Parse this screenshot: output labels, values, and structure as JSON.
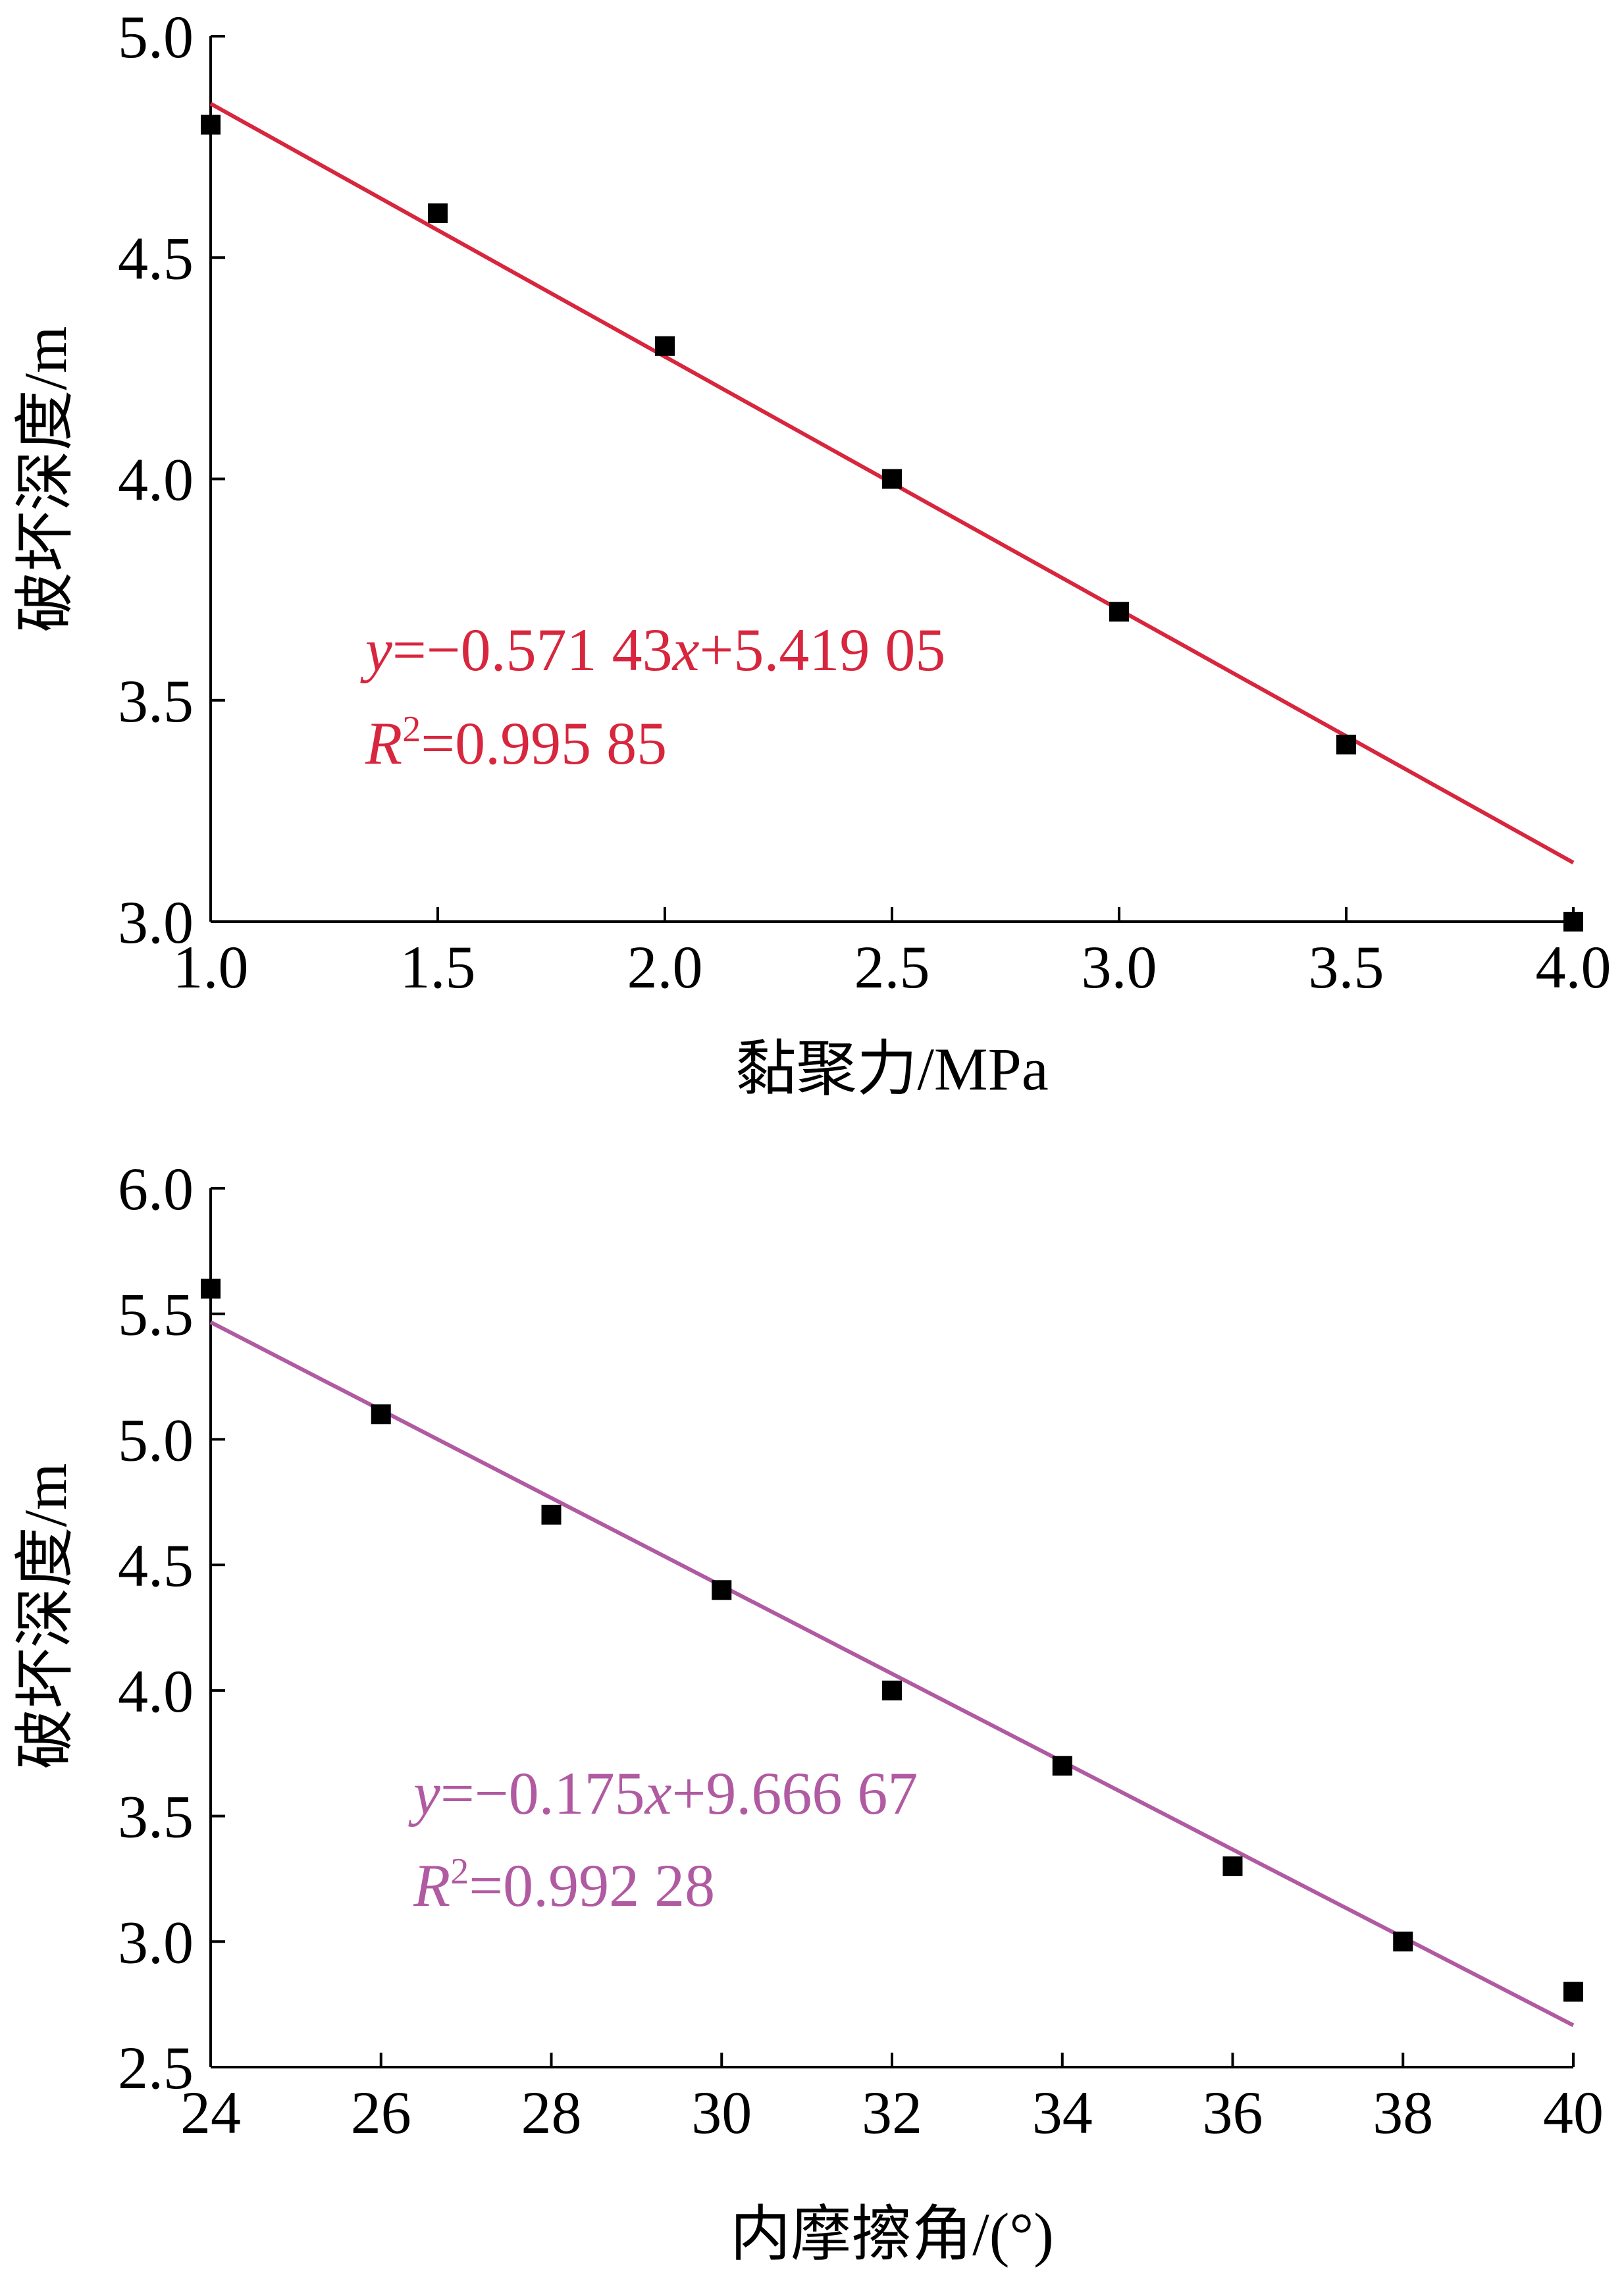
{
  "chart_data": [
    {
      "type": "scatter",
      "xlabel": "黏聚力/MPa",
      "ylabel": "破坏深度/m",
      "xlim": [
        1.0,
        4.0
      ],
      "ylim": [
        3.0,
        5.0
      ],
      "xticks": [
        "1.0",
        "1.5",
        "2.0",
        "2.5",
        "3.0",
        "3.5",
        "4.0"
      ],
      "yticks": [
        "3.0",
        "3.5",
        "4.0",
        "4.5",
        "5.0"
      ],
      "points": {
        "x": [
          1.0,
          1.5,
          2.0,
          2.5,
          3.0,
          3.5,
          4.0
        ],
        "y": [
          4.8,
          4.6,
          4.3,
          4.0,
          3.7,
          3.4,
          3.0
        ]
      },
      "fit": {
        "slope": -0.57143,
        "intercept": 5.41905,
        "color": "#d7263d",
        "equation": {
          "y_sym": "y",
          "lhs": "=−0.571 43",
          "x_sym": "x",
          "rhs": "+5.419 05"
        },
        "r2": {
          "r_sym": "R",
          "sup": "2",
          "value": "=0.995 85"
        }
      }
    },
    {
      "type": "scatter",
      "xlabel": "内摩擦角/(°)",
      "ylabel": "破坏深度/m",
      "xlim": [
        24,
        40
      ],
      "ylim": [
        2.5,
        6.0
      ],
      "xticks": [
        "24",
        "26",
        "28",
        "30",
        "32",
        "34",
        "36",
        "38",
        "40"
      ],
      "yticks": [
        "2.5",
        "3.0",
        "3.5",
        "4.0",
        "4.5",
        "5.0",
        "5.5",
        "6.0"
      ],
      "points": {
        "x": [
          24,
          26,
          28,
          30,
          32,
          34,
          36,
          38,
          40
        ],
        "y": [
          5.6,
          5.1,
          4.7,
          4.4,
          4.0,
          3.7,
          3.3,
          3.0,
          2.8
        ]
      },
      "fit": {
        "slope": -0.175,
        "intercept": 9.66667,
        "color": "#b05aa2",
        "equation": {
          "y_sym": "y",
          "lhs": "=−0.175",
          "x_sym": "x",
          "rhs": "+9.666 67"
        },
        "r2": {
          "r_sym": "R",
          "sup": "2",
          "value": "=0.992 28"
        }
      }
    }
  ]
}
